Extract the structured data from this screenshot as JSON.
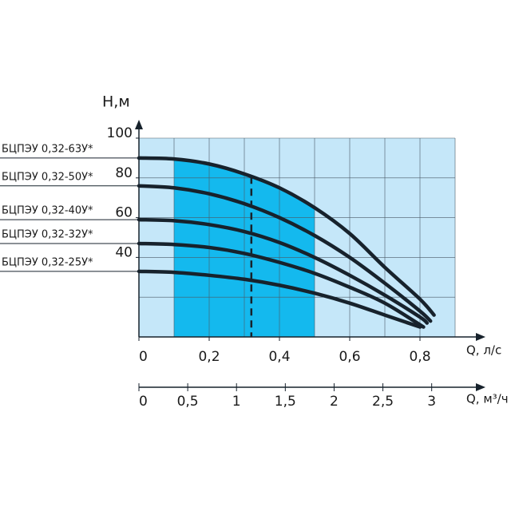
{
  "chart_data": {
    "type": "line",
    "y_label": "Н,м",
    "x_label": "Q, л/с",
    "x2_label": "Q, м³/ч",
    "xlim": [
      0,
      0.9
    ],
    "ylim": [
      0,
      100
    ],
    "x2lim": [
      0,
      3.24
    ],
    "xticks": [
      0,
      {
        "value": 0.2,
        "label": "0,2"
      },
      {
        "value": 0.4,
        "label": "0,4"
      },
      {
        "value": 0.6,
        "label": "0,6"
      },
      {
        "value": 0.8,
        "label": "0,8"
      }
    ],
    "x2ticks": [
      0,
      {
        "value": 0.5,
        "label": "0,5"
      },
      1,
      {
        "value": 1.5,
        "label": "1,5"
      },
      2,
      {
        "value": 2.5,
        "label": "2,5"
      },
      3
    ],
    "yticks": [
      40,
      60,
      80,
      100
    ],
    "xgrid": [
      0,
      0.1,
      0.2,
      0.3,
      0.4,
      0.5,
      0.6,
      0.7,
      0.8,
      0.9
    ],
    "ygrid": [
      0,
      20,
      40,
      60,
      80,
      100
    ],
    "working_range": [
      0.1,
      0.5
    ],
    "nominal_q": 0.32,
    "plot_color": "#c5e7f9",
    "range_color": "#14b9ee",
    "series": [
      {
        "name": "БЦПЭУ 0,32-63У*",
        "color": "#17222c",
        "x": [
          0,
          0.1,
          0.2,
          0.3,
          0.4,
          0.5,
          0.6,
          0.7,
          0.8,
          0.84
        ],
        "values": [
          90,
          89.5,
          87,
          82,
          75,
          65,
          52,
          35,
          19,
          11
        ]
      },
      {
        "name": "БЦПЭУ 0,32-50У*",
        "color": "#17222c",
        "x": [
          0,
          0.1,
          0.2,
          0.3,
          0.4,
          0.5,
          0.6,
          0.7,
          0.8,
          0.83
        ],
        "values": [
          76,
          75,
          72,
          67,
          60,
          51,
          40,
          27,
          13,
          8
        ]
      },
      {
        "name": "БЦПЭУ 0,32-40У*",
        "color": "#17222c",
        "x": [
          0,
          0.1,
          0.2,
          0.3,
          0.4,
          0.5,
          0.6,
          0.7,
          0.8,
          0.82
        ],
        "values": [
          59,
          58.5,
          56.5,
          53,
          47.5,
          40,
          31,
          21,
          10,
          7
        ]
      },
      {
        "name": "БЦПЭУ 0,32-32У*",
        "color": "#17222c",
        "x": [
          0,
          0.1,
          0.2,
          0.3,
          0.4,
          0.5,
          0.6,
          0.7,
          0.81
        ],
        "values": [
          47,
          46.5,
          45,
          42,
          37.5,
          32,
          25,
          17,
          5
        ]
      },
      {
        "name": "БЦПЭУ 0,32-25У*",
        "color": "#17222c",
        "x": [
          0,
          0.1,
          0.2,
          0.3,
          0.4,
          0.5,
          0.6,
          0.7,
          0.8
        ],
        "values": [
          33,
          32.5,
          31,
          29,
          26,
          22,
          17,
          11,
          5
        ]
      }
    ]
  }
}
